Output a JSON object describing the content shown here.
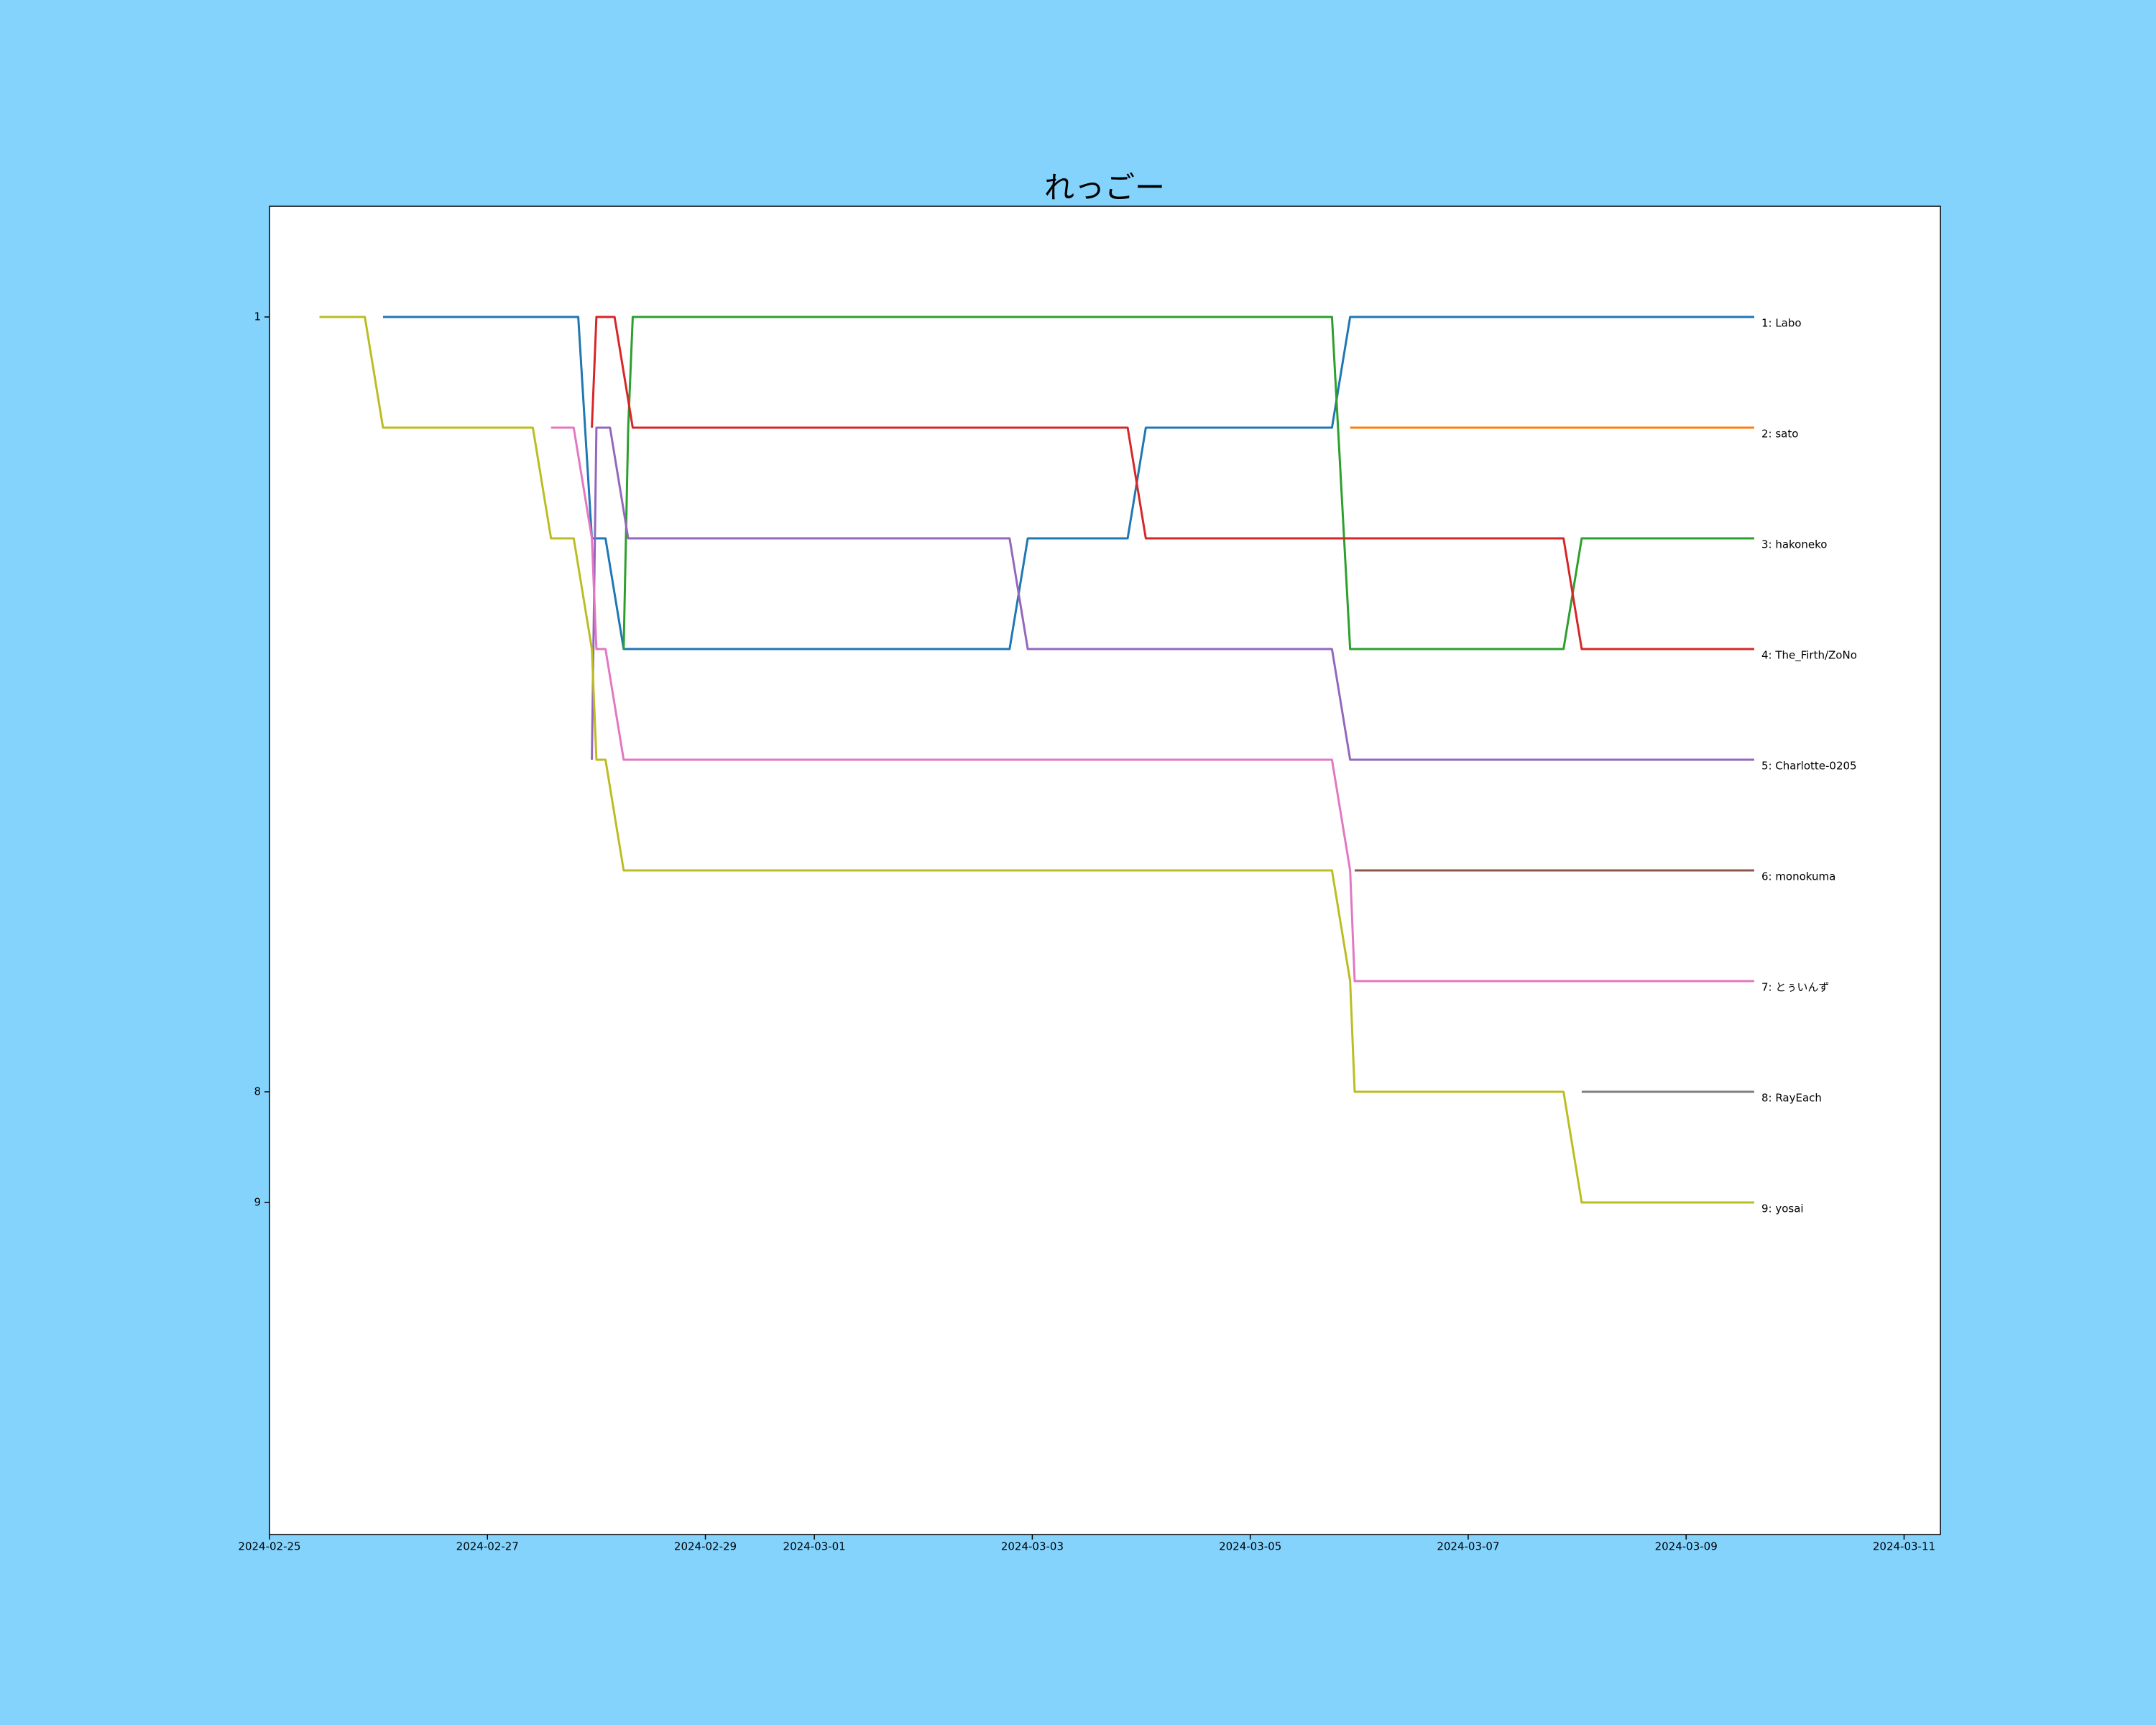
{
  "chart_data": {
    "type": "line",
    "title": "れっごー",
    "xlim": [
      "2024-02-25",
      "2024-03-11T08:00"
    ],
    "xticks": [
      "2024-02-25",
      "2024-02-27",
      "2024-02-29",
      "2024-03-01",
      "2024-03-03",
      "2024-03-05",
      "2024-03-07",
      "2024-03-09",
      "2024-03-11"
    ],
    "ylim": [
      12,
      0
    ],
    "yticks": [
      1,
      8,
      9
    ],
    "grid": false,
    "series": [
      {
        "name": "1: Labo",
        "color": "#1f77b4",
        "x": [
          "2024-02-26T01:00",
          "2024-02-27T20:00",
          "2024-02-27T23:00",
          "2024-02-28T02:00",
          "2024-02-28T06:00",
          "2024-03-02T19:00",
          "2024-03-02T23:00",
          "2024-03-03T21:00",
          "2024-03-04T01:00",
          "2024-03-05T18:00",
          "2024-03-05T22:00",
          "2024-03-09T15:00"
        ],
        "values": [
          1,
          1,
          3,
          3,
          4,
          4,
          3,
          3,
          2,
          2,
          1,
          1
        ]
      },
      {
        "name": "2: sato",
        "color": "#ff7f0e",
        "x": [
          "2024-03-05T22:00",
          "2024-03-09T15:00"
        ],
        "values": [
          2,
          2
        ]
      },
      {
        "name": "3: hakoneko",
        "color": "#2ca02c",
        "x": [
          "2024-02-28T06:00",
          "2024-02-28T07:00",
          "2024-02-28T08:00",
          "2024-03-05T18:00",
          "2024-03-05T22:00",
          "2024-03-07T21:00",
          "2024-03-08T01:00",
          "2024-03-09T15:00"
        ],
        "values": [
          4,
          2,
          1,
          1,
          4,
          4,
          3,
          3
        ]
      },
      {
        "name": "4: The_Firth/ZoNo",
        "color": "#d62728",
        "x": [
          "2024-02-27T23:00",
          "2024-02-28T00:00",
          "2024-02-28T04:00",
          "2024-02-28T08:00",
          "2024-03-03T21:00",
          "2024-03-04T01:00",
          "2024-03-07T21:00",
          "2024-03-08T01:00",
          "2024-03-09T15:00"
        ],
        "values": [
          2,
          1,
          1,
          2,
          2,
          3,
          3,
          4,
          4
        ]
      },
      {
        "name": "5: Charlotte-0205",
        "color": "#9467bd",
        "x": [
          "2024-02-27T23:00",
          "2024-02-28T00:00",
          "2024-02-28T03:00",
          "2024-02-28T07:00",
          "2024-03-02T19:00",
          "2024-03-02T23:00",
          "2024-03-05T18:00",
          "2024-03-05T22:00",
          "2024-03-09T15:00"
        ],
        "values": [
          5,
          2,
          2,
          3,
          3,
          4,
          4,
          5,
          5
        ]
      },
      {
        "name": "6: monokuma",
        "color": "#8c564b",
        "x": [
          "2024-03-05T23:00",
          "2024-03-09T15:00"
        ],
        "values": [
          6,
          6
        ]
      },
      {
        "name": "7: とぅいんず",
        "color": "#e377c2",
        "x": [
          "2024-02-27T14:00",
          "2024-02-27T19:00",
          "2024-02-27T23:00",
          "2024-02-28T00:00",
          "2024-02-28T02:00",
          "2024-02-28T06:00",
          "2024-03-05T18:00",
          "2024-03-05T22:00",
          "2024-03-05T23:00",
          "2024-03-09T15:00"
        ],
        "values": [
          2,
          2,
          3,
          4,
          4,
          5,
          5,
          6,
          7,
          7
        ]
      },
      {
        "name": "8: RayEach",
        "color": "#7f7f7f",
        "x": [
          "2024-03-08T01:00",
          "2024-03-09T15:00"
        ],
        "values": [
          8,
          8
        ]
      },
      {
        "name": "9: yosai",
        "color": "#bcbd22",
        "x": [
          "2024-02-25T11:00",
          "2024-02-25T21:00",
          "2024-02-26T01:00",
          "2024-02-27T10:00",
          "2024-02-27T14:00",
          "2024-02-27T19:00",
          "2024-02-27T23:00",
          "2024-02-28T00:00",
          "2024-02-28T02:00",
          "2024-02-28T06:00",
          "2024-03-05T18:00",
          "2024-03-05T22:00",
          "2024-03-05T23:00",
          "2024-03-07T21:00",
          "2024-03-08T01:00",
          "2024-03-09T15:00"
        ],
        "values": [
          1,
          1,
          2,
          2,
          3,
          3,
          4,
          5,
          5,
          6,
          6,
          7,
          8,
          8,
          9,
          9
        ]
      }
    ]
  }
}
